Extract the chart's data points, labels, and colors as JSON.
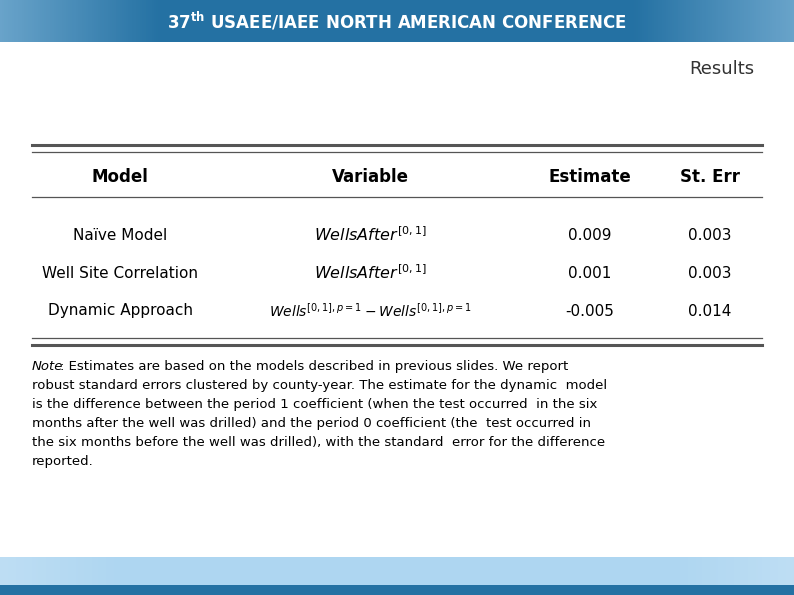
{
  "title": "Results",
  "table_headers": [
    "Model",
    "Variable",
    "Estimate",
    "St. Err"
  ],
  "rows": [
    {
      "model": "Naïve Model",
      "variable_type": "wells_after",
      "estimate": "0.009",
      "st_err": "0.003"
    },
    {
      "model": "Well Site Correlation",
      "variable_type": "wells_after",
      "estimate": "0.001",
      "st_err": "0.003"
    },
    {
      "model": "Dynamic Approach",
      "variable_type": "dynamic",
      "estimate": "-0.005",
      "st_err": "0.014"
    }
  ],
  "note_lines": [
    "Note: Estimates are based on the models described in previous slides. We report",
    "robust standard errors clustered by county-year. The estimate for the dynamic  model",
    "is the difference between the period 1 coefficient (when the test occurred  in the six",
    "months after the well was drilled) and the period 0 coefficient (the  test occurred in",
    "the six months before the well was drilled), with the standard  error for the difference",
    "reported."
  ],
  "bg_color": "#ffffff",
  "line_color": "#555555",
  "text_color": "#000000",
  "banner_center_color": "#2980b9",
  "banner_edge_color": "#7fb3d3",
  "bottom_bar_color": "#aed6f1",
  "bottom_strip_color": "#2471a3"
}
